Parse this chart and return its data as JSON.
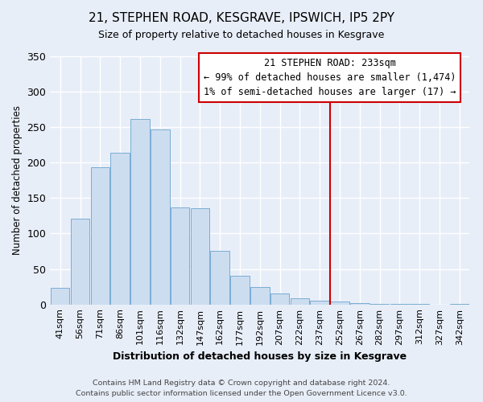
{
  "title": "21, STEPHEN ROAD, KESGRAVE, IPSWICH, IP5 2PY",
  "subtitle": "Size of property relative to detached houses in Kesgrave",
  "xlabel": "Distribution of detached houses by size in Kesgrave",
  "ylabel": "Number of detached properties",
  "bar_labels": [
    "41sqm",
    "56sqm",
    "71sqm",
    "86sqm",
    "101sqm",
    "116sqm",
    "132sqm",
    "147sqm",
    "162sqm",
    "177sqm",
    "192sqm",
    "207sqm",
    "222sqm",
    "237sqm",
    "252sqm",
    "267sqm",
    "282sqm",
    "297sqm",
    "312sqm",
    "327sqm",
    "342sqm"
  ],
  "bar_heights": [
    24,
    121,
    193,
    214,
    261,
    247,
    137,
    136,
    76,
    41,
    25,
    16,
    9,
    5,
    4,
    2,
    1,
    1,
    1,
    0,
    1
  ],
  "bar_color": "#ccddf0",
  "bar_edge_color": "#7aadd4",
  "vline_x": 13.5,
  "vline_color": "#cc0000",
  "annotation_title": "21 STEPHEN ROAD: 233sqm",
  "annotation_line1": "← 99% of detached houses are smaller (1,474)",
  "annotation_line2": "1% of semi-detached houses are larger (17) →",
  "annotation_box_color": "#ffffff",
  "annotation_box_edge": "#cc0000",
  "ylim": [
    0,
    350
  ],
  "yticks": [
    0,
    50,
    100,
    150,
    200,
    250,
    300,
    350
  ],
  "footer1": "Contains HM Land Registry data © Crown copyright and database right 2024.",
  "footer2": "Contains public sector information licensed under the Open Government Licence v3.0.",
  "bg_color": "#e8eef8",
  "grid_color": "#ffffff",
  "title_fontsize": 11,
  "subtitle_fontsize": 9,
  "ylabel_fontsize": 8.5,
  "xlabel_fontsize": 9,
  "tick_fontsize": 8,
  "annotation_fontsize": 8.5,
  "footer_fontsize": 6.8
}
